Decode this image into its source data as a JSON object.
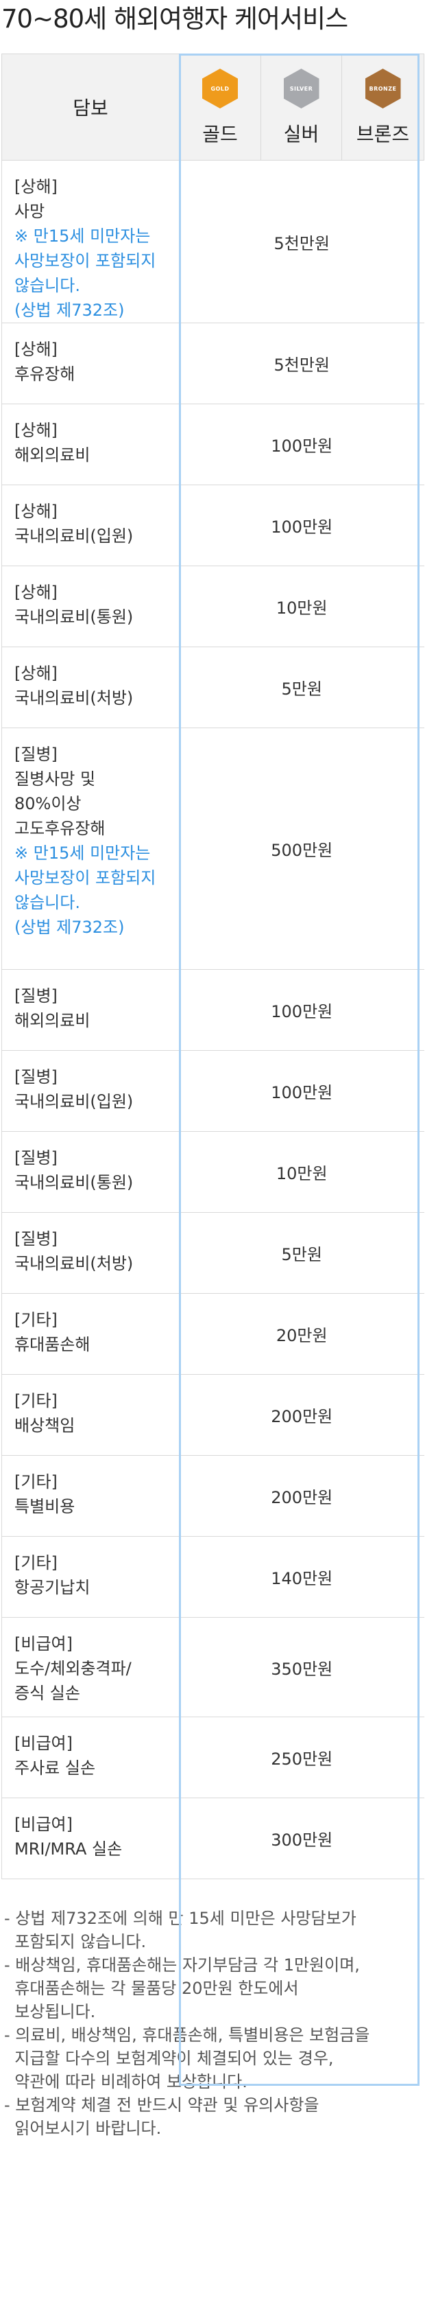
{
  "title": "70~80세 해외여행자 케어서비스",
  "table": {
    "header": {
      "coverage": "담보",
      "tiers": [
        {
          "badge": "GOLD",
          "name": "골드",
          "color": "#ef9b1c"
        },
        {
          "badge": "SILVER",
          "name": "실버",
          "color": "#a7a9ad"
        },
        {
          "badge": "BRONZE",
          "name": "브론즈",
          "color": "#a86f37"
        }
      ]
    },
    "rows": [
      {
        "lines": [
          "[상해]",
          "사망"
        ],
        "note": [
          "※ 만15세 미만자는",
          "사망보장이 포함되지",
          "않습니다.",
          "(상법 제732조)"
        ],
        "amount": "5천만원"
      },
      {
        "lines": [
          "[상해]",
          "후유장해"
        ],
        "note": [],
        "amount": "5천만원"
      },
      {
        "lines": [
          "[상해]",
          "해외의료비"
        ],
        "note": [],
        "amount": "100만원"
      },
      {
        "lines": [
          "[상해]",
          "국내의료비(입원)"
        ],
        "note": [],
        "amount": "100만원"
      },
      {
        "lines": [
          "[상해]",
          "국내의료비(통원)"
        ],
        "note": [],
        "amount": "10만원"
      },
      {
        "lines": [
          "[상해]",
          "국내의료비(처방)"
        ],
        "note": [],
        "amount": "5만원"
      },
      {
        "lines": [
          "[질병]",
          "질병사망 및",
          "80%이상",
          "고도후유장해"
        ],
        "note": [
          "※ 만15세 미만자는",
          "사망보장이 포함되지",
          "않습니다.",
          "(상법 제732조)"
        ],
        "amount": "500만원"
      },
      {
        "lines": [
          "[질병]",
          "해외의료비"
        ],
        "note": [],
        "amount": "100만원"
      },
      {
        "lines": [
          "[질병]",
          "국내의료비(입원)"
        ],
        "note": [],
        "amount": "100만원"
      },
      {
        "lines": [
          "[질병]",
          "국내의료비(통원)"
        ],
        "note": [],
        "amount": "10만원"
      },
      {
        "lines": [
          "[질병]",
          "국내의료비(처방)"
        ],
        "note": [],
        "amount": "5만원"
      },
      {
        "lines": [
          "[기타]",
          "휴대품손해"
        ],
        "note": [],
        "amount": "20만원"
      },
      {
        "lines": [
          "[기타]",
          "배상책임"
        ],
        "note": [],
        "amount": "200만원"
      },
      {
        "lines": [
          "[기타]",
          "특별비용"
        ],
        "note": [],
        "amount": "200만원"
      },
      {
        "lines": [
          "[기타]",
          "항공기납치"
        ],
        "note": [],
        "amount": "140만원"
      },
      {
        "lines": [
          "[비급여]",
          "도수/체외충격파/",
          "증식 실손"
        ],
        "note": [],
        "amount": "350만원"
      },
      {
        "lines": [
          "[비급여]",
          "주사료 실손"
        ],
        "note": [],
        "amount": "250만원"
      },
      {
        "lines": [
          "[비급여]",
          "MRI/MRA 실손"
        ],
        "note": [],
        "amount": "300만원"
      }
    ]
  },
  "notes": [
    "- 상법 제732조에 의해 만 15세 미만은 사망담보가",
    "  포함되지 않습니다.",
    "- 배상책임, 휴대품손해는 자기부담금 각 1만원이며,",
    "  휴대품손해는 각 물품당 20만원 한도에서",
    "  보상됩니다.",
    "- 의료비, 배상책임, 휴대품손해, 특별비용은 보험금을",
    "  지급할 다수의 보험계약이 체결되어 있는 경우,",
    "  약관에 따라 비례하여 보상합니다.",
    "- 보험계약 체결 전 반드시 약관 및 유의사항을",
    "  읽어보시기 바랍니다."
  ]
}
